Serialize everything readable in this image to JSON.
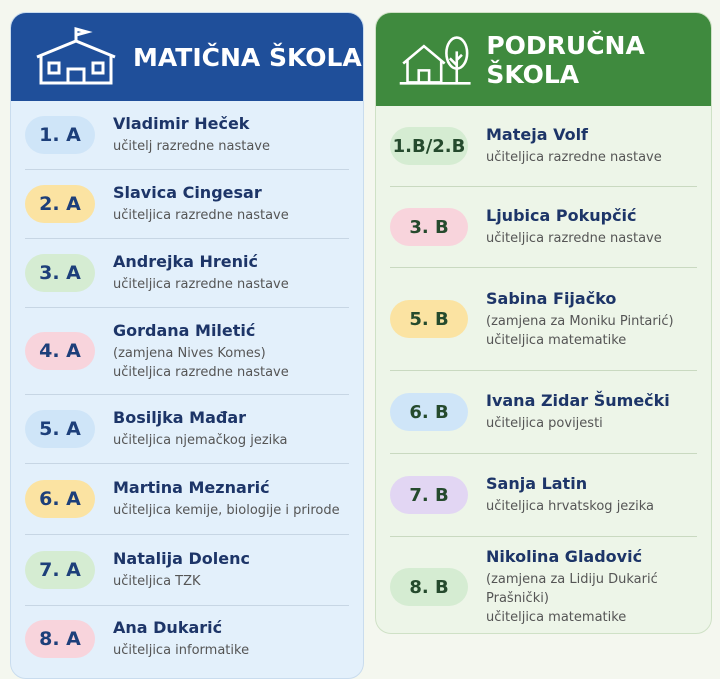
{
  "left": {
    "title": "MATIČNA ŠKOLA",
    "entries": [
      {
        "class": "1. A",
        "color": "#cfe5f8",
        "name": "Vladimir Heček",
        "role": "učitelj razredne nastave"
      },
      {
        "class": "2. A",
        "color": "#fbe3a2",
        "name": "Slavica Cingesar",
        "role": "učiteljica razredne nastave"
      },
      {
        "class": "3. A",
        "color": "#d5ecd2",
        "name": "Andrejka Hrenić",
        "role": "učiteljica razredne nastave"
      },
      {
        "class": "4. A",
        "color": "#f8d4dc",
        "name": "Gordana Miletić",
        "note": "(zamjena Nives Komes)",
        "role": "učiteljica razredne nastave"
      },
      {
        "class": "5. A",
        "color": "#cfe5f8",
        "name": "Bosiljka Mađar",
        "role": "učiteljica njemačkog jezika"
      },
      {
        "class": "6. A",
        "color": "#fbe3a2",
        "name": "Martina Meznarić",
        "role": "učiteljica kemije, biologije i prirode"
      },
      {
        "class": "7. A",
        "color": "#d5ecd2",
        "name": "Natalija Dolenc",
        "role": "učiteljica TZK"
      },
      {
        "class": "8. A",
        "color": "#f8d4dc",
        "name": "Ana Dukarić",
        "role": "učiteljica informatike"
      }
    ]
  },
  "right": {
    "title": "PODRUČNA ŠKOLA",
    "entries": [
      {
        "class": "1.B/2.B",
        "color": "#d5ecd2",
        "name": "Mateja Volf",
        "role": "učiteljica razredne nastave"
      },
      {
        "class": "3. B",
        "color": "#f8d4dc",
        "name": "Ljubica Pokupčić",
        "role": "učiteljica razredne nastave"
      },
      {
        "class": "5. B",
        "color": "#fbe3a2",
        "name": "Sabina Fijačko",
        "note": "(zamjena za Moniku Pintarić)",
        "role": "učiteljica matematike"
      },
      {
        "class": "6. B",
        "color": "#cfe5f8",
        "name": "Ivana Zidar Šumečki",
        "role": "učiteljica povijesti"
      },
      {
        "class": "7. B",
        "color": "#e2d6f3",
        "name": "Sanja Latin",
        "role": "učiteljica hrvatskog jezika"
      },
      {
        "class": "8. B",
        "color": "#d5ecd2",
        "name": "Nikolina Gladović",
        "note": "(zamjena za Lidiju Dukarić Prašnički)",
        "role": "učiteljica matematike"
      }
    ]
  }
}
